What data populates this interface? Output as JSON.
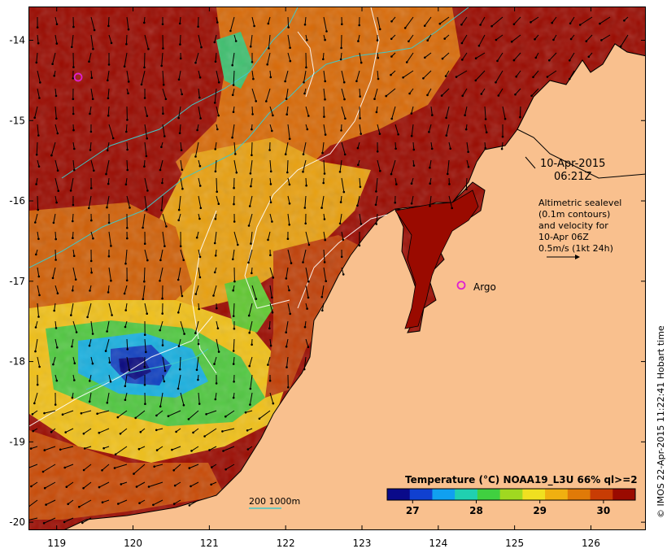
{
  "map": {
    "lon_ticks": [
      "119",
      "120",
      "121",
      "122",
      "123",
      "124",
      "125",
      "126"
    ],
    "lat_ticks": [
      "-14",
      "-15",
      "-16",
      "-17",
      "-18",
      "-19",
      "-20"
    ],
    "lon_range": [
      118.63,
      126.72
    ],
    "lat_range": [
      -13.58,
      -20.1
    ]
  },
  "annotations": {
    "date": "10-Apr-2015",
    "time": "06:21Z",
    "alt_line1": "Altimetric sealevel",
    "alt_line2": "(0.1m contours)",
    "alt_line3": "and velocity for",
    "alt_line4": "10-Apr 06Z",
    "alt_line5": "0.5m/s (1kt 24h)",
    "argo_label": "Argo",
    "depth_label": "200  1000m"
  },
  "colorbar": {
    "title": "Temperature (°C) NOAA19_L3U 66% ql>=2",
    "ticks": [
      "27",
      "28",
      "29",
      "30"
    ],
    "colors": [
      "#0a0a8a",
      "#1040d0",
      "#10a0f0",
      "#20d0b0",
      "#40d040",
      "#a0d820",
      "#f0e020",
      "#f0b010",
      "#e07a08",
      "#c83c04",
      "#9a0a00"
    ]
  },
  "argo_floats": [
    {
      "lon": 119.27,
      "lat": -14.45
    },
    {
      "lon": 124.29,
      "lat": -17.04
    }
  ],
  "credit": "© IMOS 22-Apr-2015 11:22:41 Hobart time",
  "colors": {
    "land": "#f9c08e",
    "warm": "#9a0a00",
    "argo": "#e020d0",
    "bathy": "#40c8c8",
    "contour": "#ffffff"
  }
}
